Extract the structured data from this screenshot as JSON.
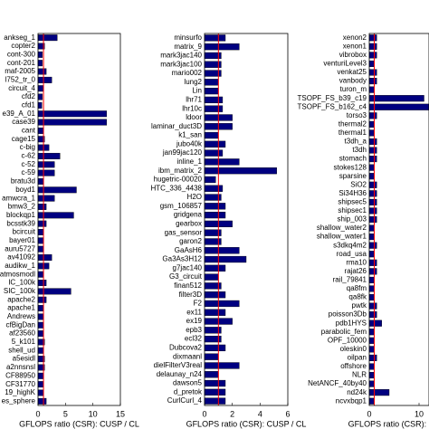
{
  "chart_data": [
    {
      "type": "bar",
      "orientation": "horizontal",
      "xlabel": "GFLOPS ratio (CSR): CUSP / CL",
      "categories": [
        "ankseg_1",
        "copter2",
        "cont-300",
        "cont-201",
        "maf-2005",
        "l752_tr_0",
        "circuit_4",
        "cfd2",
        "cfd1",
        "e39_A_01",
        "case39",
        "cant",
        "cage15",
        "c-big",
        "c-62",
        "c-52",
        "c-59",
        "bratu3d",
        "boyd1",
        "amwcra_1",
        "bmw3_2",
        "blockqp1",
        "bcsstk39",
        "bcircuit",
        "bayer01",
        "auru5727",
        "av41092",
        "audikw_1",
        "atmosmodl",
        "IC_100k",
        "SIC_100k",
        "apache2",
        "apache1",
        "Andrews",
        "cfBigDan",
        "af23560",
        "5_k101",
        "shell_ud",
        "a5esidl",
        "a2nnsnsl",
        "CF88950",
        "CF31770",
        "19_highK",
        "es_sphere"
      ],
      "values": [
        3.5,
        1.2,
        0.8,
        0.8,
        1.5,
        2.5,
        1,
        0.8,
        0.7,
        12.5,
        12.5,
        1,
        1.2,
        2,
        4,
        3,
        3,
        1,
        7,
        3,
        1.5,
        6.5,
        1.5,
        1,
        1,
        1,
        2.5,
        2,
        1,
        1.5,
        6,
        1.5,
        1,
        1,
        1,
        1,
        1.2,
        1,
        1.2,
        1.2,
        1,
        1,
        1,
        1.5
      ],
      "color": "#000080",
      "reference": 1,
      "reference_color": "#ff0000",
      "xlim": [
        0,
        15
      ],
      "xticks": [
        0,
        5,
        10,
        15
      ]
    },
    {
      "type": "bar",
      "orientation": "horizontal",
      "xlabel": "GFLOPS ratio (CSR): CUSP / CL",
      "categories": [
        "minsurfo",
        "matrix_9",
        "mark3jac140",
        "mark3jac100",
        "mario002",
        "lung2",
        "Lin",
        "lhr71",
        "lhr10c",
        "ldoor",
        "laminar_duct3D",
        "k1_san",
        "jubo40k",
        "jan99jac120",
        "inline_1",
        "ibm_matrix_2",
        "hugetric-00020",
        "HTC_336_4438",
        "H2O",
        "gsm_106857",
        "gridgena",
        "gearbox",
        "gas_sensor",
        "garon2",
        "GaAsH6",
        "Ga3As3H12",
        "g7jac140",
        "G3_circuit",
        "finan512",
        "filter3D",
        "F2",
        "ex11",
        "ex19",
        "epb3",
        "ecl32",
        "Dubcova2",
        "dixmaanl",
        "dielFilterV3real",
        "delaunay_n24",
        "dawson5",
        "d_pretok",
        "CurlCurl_4"
      ],
      "values": [
        1.5,
        2.5,
        1.2,
        1.2,
        1.2,
        1,
        1,
        1.3,
        1.3,
        2,
        2,
        1,
        1.5,
        1.3,
        2.5,
        5.2,
        0.8,
        1.3,
        1.2,
        1.5,
        1.5,
        2,
        1.2,
        1.2,
        2.5,
        3,
        1.5,
        1,
        1.2,
        1.5,
        2.5,
        1.5,
        2,
        1.2,
        1.2,
        1.5,
        1,
        2.5,
        1,
        1.5,
        1.5,
        1.5
      ],
      "color": "#000080",
      "reference": 1,
      "reference_color": "#ff0000",
      "xlim": [
        0,
        6
      ],
      "xticks": [
        0,
        2,
        4,
        6
      ]
    },
    {
      "type": "bar",
      "orientation": "horizontal",
      "xlabel": "GFLOPS ratio (CSR): CUSP / CL",
      "categories": [
        "xenon2",
        "xenon1",
        "vibrobox",
        "venturiLevel3",
        "venkat25",
        "vanbody",
        "turon_m",
        "TSOPF_FS_b39_c19",
        "TSOPF_FS_b162_c4",
        "torso3",
        "thermal2",
        "thermal1",
        "t3dh_a",
        "t3dh",
        "stomach",
        "stokes128",
        "sparsine",
        "SiO2",
        "Si34H36",
        "shipsec5",
        "shipsec1",
        "ship_003",
        "shallow_water2",
        "shallow_water1",
        "s3dkq4m2",
        "road_usa",
        "rma10",
        "rajat26",
        "rail_79841",
        "qa8fm",
        "qa8fk",
        "pwtk",
        "poisson3Db",
        "pdb1HYS",
        "parabolic_fem",
        "OPF_10000",
        "oleskin0",
        "oilpan",
        "offshore",
        "NLR",
        "NetANCF_40by40",
        "nd24k",
        "ncvxbqp1"
      ],
      "values": [
        1.5,
        1.5,
        1.5,
        1,
        1.5,
        1.5,
        1,
        11,
        12,
        1.5,
        1,
        1,
        1.5,
        1.5,
        1.5,
        1,
        1,
        1.5,
        1.5,
        1.5,
        1.5,
        1.5,
        1,
        1,
        1.5,
        1,
        1.5,
        1.5,
        1,
        1,
        1,
        1.5,
        1.5,
        2.5,
        1,
        1,
        1,
        1.5,
        1,
        1,
        1,
        4,
        1
      ],
      "color": "#000080",
      "reference": 1,
      "reference_color": "#ff0000",
      "xlim": [
        0,
        12
      ],
      "xticks": [
        0,
        10
      ]
    }
  ]
}
